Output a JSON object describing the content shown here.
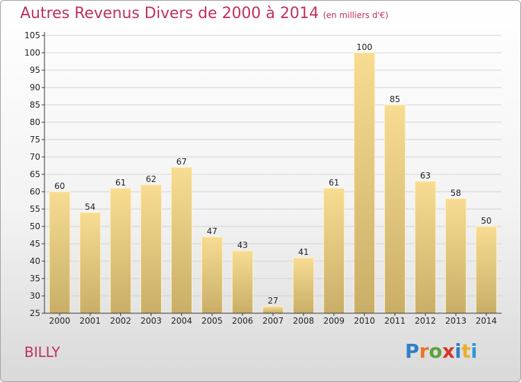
{
  "title": "Autres Revenus Divers de 2000 à 2014",
  "unit_note": "(en milliers d'€)",
  "commune": "BILLY",
  "logo": {
    "letters": [
      "P",
      "r",
      "o",
      "x",
      "i",
      "t",
      "i"
    ],
    "colors": [
      "#2f7fc7",
      "#e8752a",
      "#5aa33a",
      "#d8342b",
      "#2f7fc7",
      "#e8b12a",
      "#2f9ad8"
    ]
  },
  "colors": {
    "title": "#c0305a",
    "bar_top": "#f7dc92",
    "bar_bottom": "#c9ae68",
    "bar_edge": "#fff4c8"
  },
  "chart_data": {
    "type": "bar",
    "title": "Autres Revenus Divers de 2000 à 2014",
    "subtitle": "(en milliers d'€)",
    "categories": [
      "2000",
      "2001",
      "2002",
      "2003",
      "2004",
      "2005",
      "2006",
      "2007",
      "2008",
      "2009",
      "2010",
      "2011",
      "2012",
      "2013",
      "2014"
    ],
    "values": [
      60,
      54,
      61,
      62,
      67,
      47,
      43,
      27,
      41,
      61,
      100,
      85,
      63,
      58,
      50
    ],
    "ylim": [
      25,
      105
    ],
    "yticks": [
      25,
      30,
      35,
      40,
      45,
      50,
      55,
      60,
      65,
      70,
      75,
      80,
      85,
      90,
      95,
      100,
      105
    ],
    "grid": true,
    "data_labels": true
  }
}
